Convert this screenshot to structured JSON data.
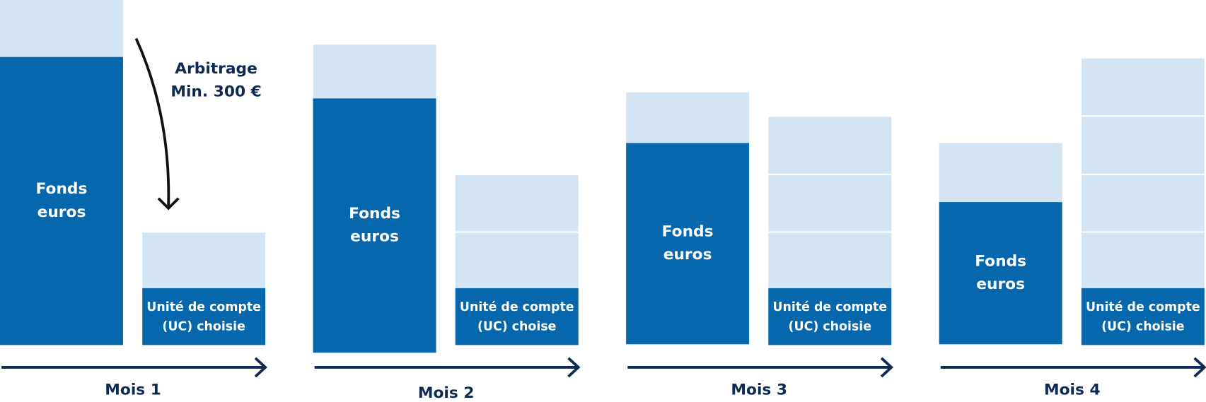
{
  "annotation": {
    "lines": [
      "Arbitrage",
      "Min. 300 €"
    ]
  },
  "panels": [
    {
      "month": "Mois 1",
      "fonds": [
        "Fonds",
        "euros"
      ],
      "uc": [
        "Unité de compte",
        "(UC) choisie"
      ]
    },
    {
      "month": "Mois 2",
      "fonds": [
        "Fonds",
        "euros"
      ],
      "uc": [
        "Unité de compte",
        "(UC) choise"
      ]
    },
    {
      "month": "Mois 3",
      "fonds": [
        "Fonds",
        "euros"
      ],
      "uc": [
        "Unité de compte",
        "(UC) choisie"
      ]
    },
    {
      "month": "Mois 4",
      "fonds": [
        "Fonds",
        "euros"
      ],
      "uc": [
        "Unité de compte",
        "(UC) choisie"
      ]
    }
  ]
}
